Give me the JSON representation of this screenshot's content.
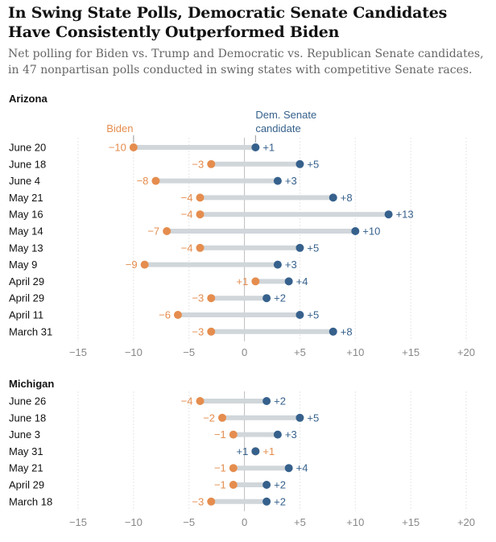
{
  "title": "In Swing State Polls, Democratic Senate Candidates Have Consistently Outperformed Biden",
  "subtitle": "Net polling for Biden vs. Trump and Democratic vs. Republican Senate candidates, in 47 nonpartisan polls conducted in swing states with competitive Senate races.",
  "colors": {
    "biden": "#e58d4e",
    "dem": "#36618c",
    "connector": "#d0d6da",
    "grid": "#e6e6e6",
    "axis_text": "#888888"
  },
  "chart_data": [
    {
      "type": "dot-plot",
      "state": "Arizona",
      "legend": {
        "biden": "Biden",
        "dem_line1": "Dem. Senate",
        "dem_line2": "candidate"
      },
      "x_ticks": [
        -15,
        -10,
        -5,
        0,
        5,
        10,
        15,
        20
      ],
      "x_tick_labels": [
        "−15",
        "−10",
        "−5",
        "0",
        "+5",
        "+10",
        "+15",
        "+20"
      ],
      "xlim": [
        -15,
        20
      ],
      "rows": [
        {
          "date": "June 20",
          "biden": -10,
          "biden_label": "−10",
          "dem": 1,
          "dem_label": "+1"
        },
        {
          "date": "June 18",
          "biden": -3,
          "biden_label": "−3",
          "dem": 5,
          "dem_label": "+5"
        },
        {
          "date": "June 4",
          "biden": -8,
          "biden_label": "−8",
          "dem": 3,
          "dem_label": "+3"
        },
        {
          "date": "May 21",
          "biden": -4,
          "biden_label": "−4",
          "dem": 8,
          "dem_label": "+8"
        },
        {
          "date": "May 16",
          "biden": -4,
          "biden_label": "−4",
          "dem": 13,
          "dem_label": "+13"
        },
        {
          "date": "May 14",
          "biden": -7,
          "biden_label": "−7",
          "dem": 10,
          "dem_label": "+10"
        },
        {
          "date": "May 13",
          "biden": -4,
          "biden_label": "−4",
          "dem": 5,
          "dem_label": "+5"
        },
        {
          "date": "May 9",
          "biden": -9,
          "biden_label": "−9",
          "dem": 3,
          "dem_label": "+3"
        },
        {
          "date": "April 29",
          "biden": 1,
          "biden_label": "+1",
          "dem": 4,
          "dem_label": "+4"
        },
        {
          "date": "April 29",
          "biden": -3,
          "biden_label": "−3",
          "dem": 2,
          "dem_label": "+2"
        },
        {
          "date": "April 11",
          "biden": -6,
          "biden_label": "−6",
          "dem": 5,
          "dem_label": "+5"
        },
        {
          "date": "March 31",
          "biden": -3,
          "biden_label": "−3",
          "dem": 8,
          "dem_label": "+8"
        }
      ]
    },
    {
      "type": "dot-plot",
      "state": "Michigan",
      "x_ticks": [
        -15,
        -10,
        -5,
        0,
        5,
        10,
        15,
        20
      ],
      "x_tick_labels": [
        "−15",
        "−10",
        "−5",
        "0",
        "+5",
        "+10",
        "+15",
        "+20"
      ],
      "xlim": [
        -15,
        20
      ],
      "rows": [
        {
          "date": "June 26",
          "biden": -4,
          "biden_label": "−4",
          "dem": 2,
          "dem_label": "+2"
        },
        {
          "date": "June 18",
          "biden": -2,
          "biden_label": "−2",
          "dem": 5,
          "dem_label": "+5"
        },
        {
          "date": "June 3",
          "biden": -1,
          "biden_label": "−1",
          "dem": 3,
          "dem_label": "+3"
        },
        {
          "date": "May 31",
          "biden": 1,
          "biden_label": "+1",
          "dem": 1,
          "dem_label": "+1"
        },
        {
          "date": "May 21",
          "biden": -1,
          "biden_label": "−1",
          "dem": 4,
          "dem_label": "+4"
        },
        {
          "date": "April 29",
          "biden": -1,
          "biden_label": "−1",
          "dem": 2,
          "dem_label": "+2"
        },
        {
          "date": "March 18",
          "biden": -3,
          "biden_label": "−3",
          "dem": 2,
          "dem_label": "+2"
        }
      ]
    }
  ]
}
